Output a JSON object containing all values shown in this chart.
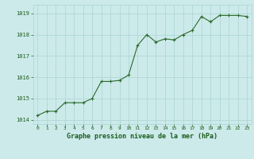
{
  "x": [
    0,
    1,
    2,
    3,
    4,
    5,
    6,
    7,
    8,
    9,
    10,
    11,
    12,
    13,
    14,
    15,
    16,
    17,
    18,
    19,
    20,
    21,
    22,
    23
  ],
  "y": [
    1014.2,
    1014.4,
    1014.4,
    1014.8,
    1014.8,
    1014.8,
    1015.0,
    1015.8,
    1015.8,
    1015.85,
    1016.1,
    1017.5,
    1018.0,
    1017.65,
    1017.8,
    1017.75,
    1018.0,
    1018.2,
    1018.85,
    1018.6,
    1018.9,
    1018.9,
    1018.9,
    1018.85
  ],
  "line_color": "#2d6a2d",
  "marker_color": "#2d6a2d",
  "bg_color": "#cceaea",
  "grid_color": "#aad4d4",
  "axis_label_color": "#1a5c1a",
  "tick_label_color": "#1a5c1a",
  "xlabel": "Graphe pression niveau de la mer (hPa)",
  "ylim": [
    1013.8,
    1019.4
  ],
  "xlim": [
    -0.5,
    23.5
  ],
  "yticks": [
    1014,
    1015,
    1016,
    1017,
    1018,
    1019
  ],
  "xticks": [
    0,
    1,
    2,
    3,
    4,
    5,
    6,
    7,
    8,
    9,
    10,
    11,
    12,
    13,
    14,
    15,
    16,
    17,
    18,
    19,
    20,
    21,
    22,
    23
  ]
}
